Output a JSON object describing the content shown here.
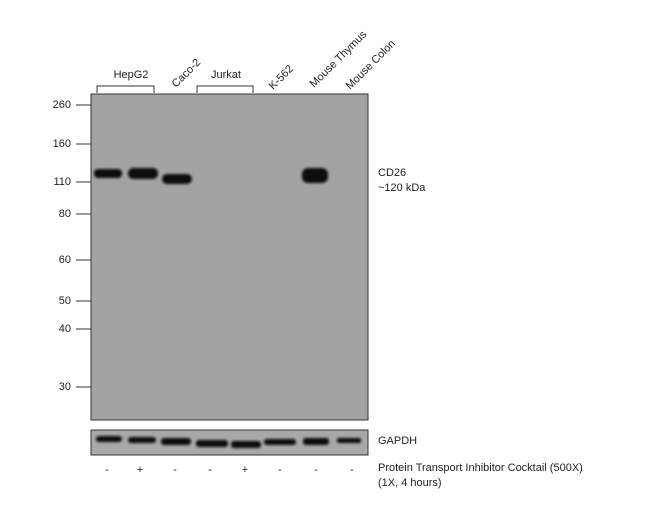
{
  "samples": [
    "HepG2",
    "Caco-2",
    "Jurkat",
    "K-562",
    "Mouse Thymus",
    "Mouse Colon"
  ],
  "markers": [
    260,
    160,
    110,
    80,
    60,
    50,
    40,
    30
  ],
  "target": {
    "name": "CD26",
    "size": "~120 kDa"
  },
  "loading_control": "GAPDH",
  "treatment": {
    "label": "Protein Transport Inhibitor Cocktail (500X)",
    "dose": "(1X, 4 hours)",
    "lanes": [
      "-",
      "+",
      "-",
      "-",
      "+",
      "-",
      "-",
      "-"
    ]
  }
}
